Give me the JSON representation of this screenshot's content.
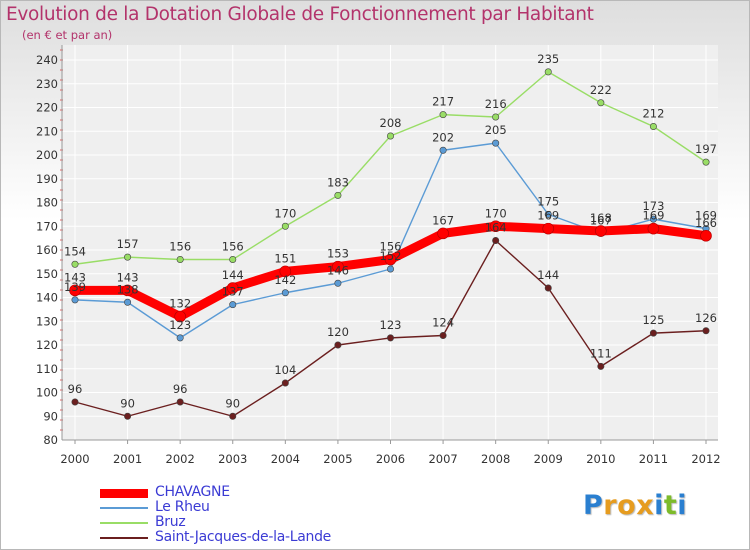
{
  "title": "Evolution de la Dotation Globale de Fonctionnement par Habitant",
  "subtitle": "(en € et par an)",
  "logo": {
    "letters": [
      "P",
      "r",
      "o",
      "x",
      "i",
      "t",
      "i"
    ],
    "colors": [
      "#2a7fd0",
      "#e69c1f",
      "#e69c1f",
      "#e69c1f",
      "#2a7fd0",
      "#7dbb2a",
      "#2a7fd0"
    ]
  },
  "chart_data": {
    "type": "line",
    "title": "Evolution de la Dotation Globale de Fonctionnement par Habitant",
    "subtitle": "(en € et par an)",
    "xlabel": "",
    "ylabel": "",
    "x": [
      "2000",
      "2001",
      "2002",
      "2003",
      "2004",
      "2005",
      "2006",
      "2007",
      "2008",
      "2009",
      "2010",
      "2011",
      "2012"
    ],
    "ylim": [
      80,
      240
    ],
    "yticks": [
      80,
      90,
      100,
      110,
      120,
      130,
      140,
      150,
      160,
      170,
      180,
      190,
      200,
      210,
      220,
      230,
      240
    ],
    "grid": true,
    "legend_position": "bottom-left",
    "series": [
      {
        "name": "CHAVAGNE",
        "values": [
          143,
          143,
          132,
          144,
          151,
          153,
          156,
          167,
          170,
          169,
          168,
          169,
          166
        ],
        "color": "#ff0000",
        "emphasis": true
      },
      {
        "name": "Le Rheu",
        "values": [
          139,
          138,
          123,
          137,
          142,
          146,
          152,
          202,
          205,
          175,
          167,
          173,
          169
        ],
        "color": "#5b9bd5",
        "emphasis": false
      },
      {
        "name": "Bruz",
        "values": [
          154,
          157,
          156,
          156,
          170,
          183,
          208,
          217,
          216,
          235,
          222,
          212,
          197
        ],
        "color": "#99dd66",
        "emphasis": false
      },
      {
        "name": "Saint-Jacques-de-la-Lande",
        "values": [
          96,
          90,
          96,
          90,
          104,
          120,
          123,
          124,
          164,
          144,
          111,
          125,
          126
        ],
        "color": "#6b1f1f",
        "emphasis": false
      }
    ]
  }
}
